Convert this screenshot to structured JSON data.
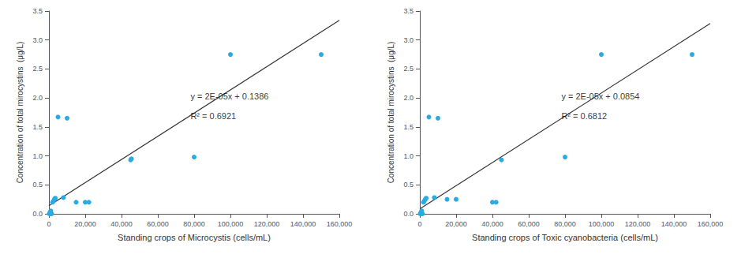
{
  "chart_data": [
    {
      "type": "scatter",
      "xlabel": "Standing crops of Microcystis (cells/mL)",
      "ylabel": "Concentration of total mirocystins  (μg/L)",
      "series": [
        {
          "type": "scatter",
          "color": "#29ABE2",
          "x": [
            200,
            500,
            800,
            1000,
            1500,
            2000,
            2500,
            3000,
            3500,
            5000,
            8000,
            10000,
            15000,
            20000,
            22000,
            45000,
            45500,
            80000,
            100000,
            150000
          ],
          "values": [
            0.0,
            0.02,
            0.0,
            0.05,
            0.0,
            0.2,
            0.22,
            0.25,
            0.27,
            1.67,
            0.28,
            1.65,
            0.2,
            0.2,
            0.2,
            0.93,
            0.95,
            0.98,
            2.75,
            2.75
          ]
        },
        {
          "type": "line",
          "color": "#333333",
          "x": [
            0,
            160000
          ],
          "values": [
            0.1386,
            3.3386
          ]
        }
      ],
      "annotations": [
        {
          "text": "y = 2E-05x + 0.1386",
          "x": 78000,
          "y": 1.95
        },
        {
          "text": "R² = 0.6921",
          "x": 78000,
          "y": 1.77
        }
      ],
      "xlim": [
        0,
        160000
      ],
      "xticks": [
        0,
        {
          "value": 20000,
          "label": "20,000"
        },
        {
          "value": 40000,
          "label": "40,000"
        },
        {
          "value": 60000,
          "label": "60,000"
        },
        {
          "value": 80000,
          "label": "80,000"
        },
        {
          "value": 100000,
          "label": "100,000"
        },
        {
          "value": 120000,
          "label": "120,000"
        },
        {
          "value": 140000,
          "label": "140,000"
        },
        {
          "value": 160000,
          "label": "160,000"
        }
      ],
      "ylim": [
        0,
        3.5
      ],
      "yticks": [
        {
          "value": 0.0,
          "label": "0.0"
        },
        0.5,
        {
          "value": 1.0,
          "label": "1.0"
        },
        1.5,
        {
          "value": 2.0,
          "label": "2.0"
        },
        2.5,
        {
          "value": 3.0,
          "label": "3.0"
        },
        3.5
      ],
      "grid": false
    },
    {
      "type": "scatter",
      "xlabel": "Standing crops of Toxic cyanobacteria (cells/mL)",
      "ylabel": "Concentration of total mirocystins  (μg/L)",
      "series": [
        {
          "type": "scatter",
          "color": "#29ABE2",
          "x": [
            200,
            500,
            800,
            1000,
            1500,
            2000,
            2500,
            3000,
            3500,
            5000,
            8000,
            10000,
            15000,
            20000,
            40000,
            42000,
            45000,
            80000,
            100000,
            150000
          ],
          "values": [
            0.0,
            0.02,
            0.0,
            0.05,
            0.0,
            0.2,
            0.22,
            0.25,
            0.27,
            1.67,
            0.28,
            1.65,
            0.25,
            0.25,
            0.2,
            0.2,
            0.93,
            0.98,
            2.75,
            2.75
          ]
        },
        {
          "type": "line",
          "color": "#333333",
          "x": [
            0,
            160000
          ],
          "values": [
            0.0854,
            3.2854
          ]
        }
      ],
      "annotations": [
        {
          "text": "y = 2E-05x + 0.0854",
          "x": 78000,
          "y": 1.95
        },
        {
          "text": "R² = 0.6812",
          "x": 78000,
          "y": 1.77
        }
      ],
      "xlim": [
        0,
        160000
      ],
      "xticks": [
        0,
        {
          "value": 20000,
          "label": "20,000"
        },
        {
          "value": 40000,
          "label": "40,000"
        },
        {
          "value": 60000,
          "label": "60,000"
        },
        {
          "value": 80000,
          "label": "80,000"
        },
        {
          "value": 100000,
          "label": "100,000"
        },
        {
          "value": 120000,
          "label": "120,000"
        },
        {
          "value": 140000,
          "label": "140,000"
        },
        {
          "value": 160000,
          "label": "160,000"
        }
      ],
      "ylim": [
        0,
        3.5
      ],
      "yticks": [
        {
          "value": 0.0,
          "label": "0.0"
        },
        0.5,
        {
          "value": 1.0,
          "label": "1.0"
        },
        1.5,
        {
          "value": 2.0,
          "label": "2.0"
        },
        2.5,
        {
          "value": 3.0,
          "label": "3.0"
        },
        3.5
      ],
      "grid": false
    }
  ]
}
